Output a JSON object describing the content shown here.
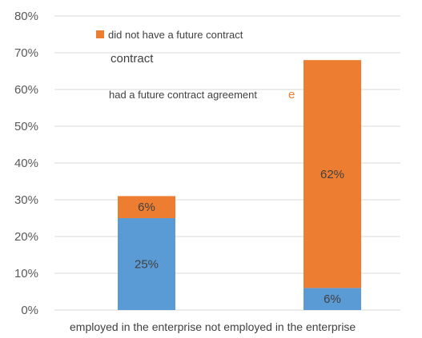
{
  "chart_data": {
    "type": "bar",
    "stacked": true,
    "categories": [
      "employed in the enterprise",
      "not employed in the enterprise"
    ],
    "series": [
      {
        "name": "had a future contract agreement",
        "color": "#5B9BD5",
        "values": [
          25,
          6
        ]
      },
      {
        "name": "did not have a future contract",
        "color": "#ED7D31",
        "values": [
          6,
          62
        ]
      }
    ],
    "data_labels": [
      [
        "25%",
        "6%"
      ],
      [
        "6%",
        "62%"
      ]
    ],
    "ylim": [
      0,
      80
    ],
    "yticks": [
      0,
      10,
      20,
      30,
      40,
      50,
      60,
      70,
      80
    ],
    "ytick_labels": [
      "0%",
      "10%",
      "20%",
      "30%",
      "40%",
      "50%",
      "60%",
      "70%",
      "80%"
    ],
    "legend_extra_text": [
      "contract",
      "e"
    ],
    "category_caption": "employed in the enterprise not employed in the enterprise",
    "grid": true,
    "gridline_color": "#d9d9d9"
  }
}
